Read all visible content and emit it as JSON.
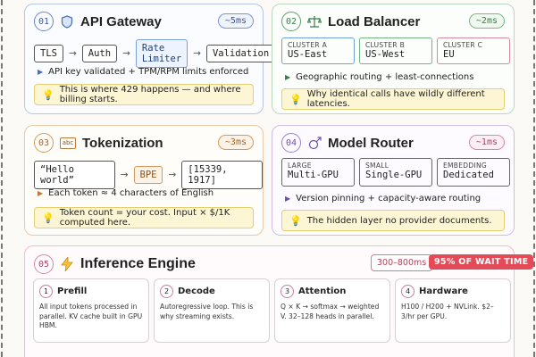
{
  "gateway": {
    "num": "01",
    "title": "API Gateway",
    "icon": "shield-icon",
    "latency": "~5ms",
    "pipeline": [
      "TLS",
      "Auth",
      "Rate Limiter",
      "Validation"
    ],
    "bullet": "API key validated + TPM/RPM limits enforced",
    "note": "This is where 429 happens — and where billing starts."
  },
  "balancer": {
    "num": "02",
    "title": "Load Balancer",
    "icon": "scale-icon",
    "latency": "~2ms",
    "clusters": [
      {
        "label": "CLUSTER A",
        "value": "US-East"
      },
      {
        "label": "CLUSTER B",
        "value": "US-West"
      },
      {
        "label": "CLUSTER C",
        "value": "EU"
      }
    ],
    "bullet": "Geographic routing + least-connections",
    "note": "Why identical calls have wildly different latencies."
  },
  "tokenization": {
    "num": "03",
    "title": "Tokenization",
    "icon": "abc-icon",
    "icon_text": "abc",
    "latency": "~3ms",
    "pipeline": [
      "“Hello world”",
      "BPE",
      "[15339, 1917]"
    ],
    "bullet": "Each token ≈ 4 characters of English",
    "note": "Token count = your cost. Input × $/1K computed here."
  },
  "router": {
    "num": "04",
    "title": "Model Router",
    "icon": "compass-icon",
    "latency": "~1ms",
    "clusters": [
      {
        "label": "LARGE",
        "value": "Multi-GPU"
      },
      {
        "label": "SMALL",
        "value": "Single-GPU"
      },
      {
        "label": "EMBEDDING",
        "value": "Dedicated"
      }
    ],
    "bullet": "Version pinning + capacity-aware routing",
    "note": "The hidden layer no provider documents."
  },
  "inference": {
    "num": "05",
    "title": "Inference Engine",
    "icon": "lightning-icon",
    "latency": "300–800ms",
    "share": "95% OF WAIT TIME",
    "steps": [
      {
        "num": "1",
        "title": "Prefill",
        "desc": "All input tokens processed in parallel. KV cache built in GPU HBM."
      },
      {
        "num": "2",
        "title": "Decode",
        "desc": "Autoregressive loop. This is why streaming exists."
      },
      {
        "num": "3",
        "title": "Attention",
        "desc": "Q × K → softmax → weighted V. 32–128 heads in parallel."
      },
      {
        "num": "4",
        "title": "Hardware",
        "desc": "H100 / H200 + NVLink. $2–3/hr per GPU."
      }
    ]
  }
}
